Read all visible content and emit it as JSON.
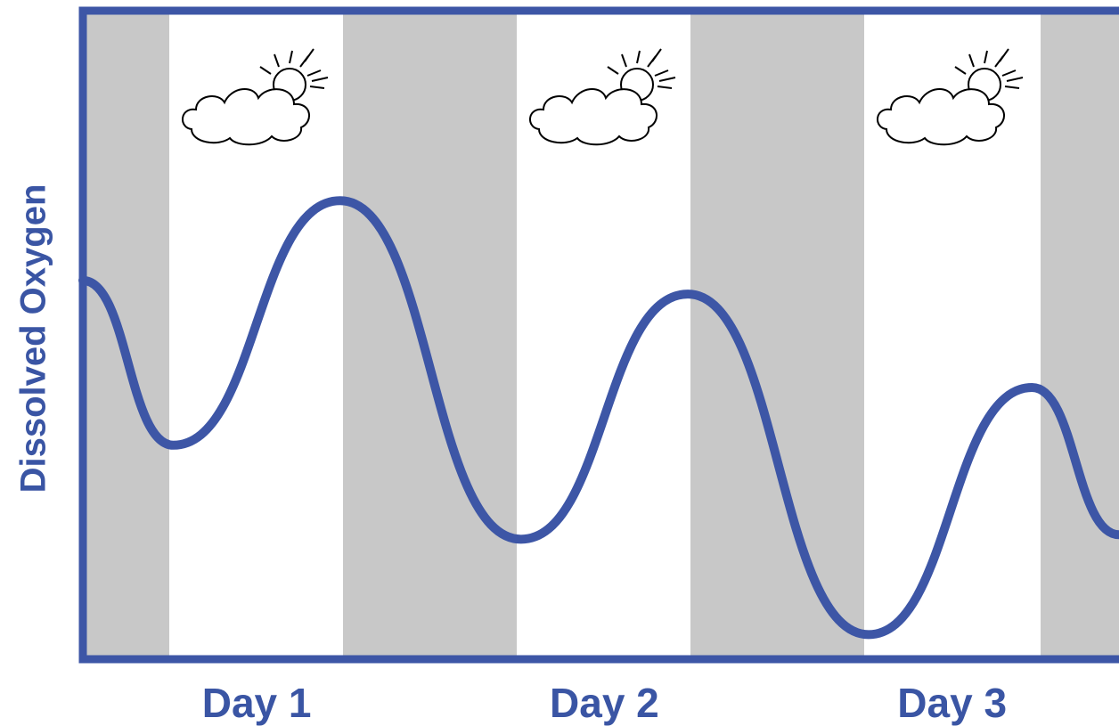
{
  "chart_data": {
    "type": "line",
    "y_label": "Dissolved Oxygen",
    "x": [
      0,
      0.26,
      0.74,
      1.26,
      1.74,
      2.26,
      2.73,
      2.98
    ],
    "values": [
      58.4,
      33,
      70.7,
      18.5,
      56.3,
      3.8,
      41.9,
      19.2
    ],
    "color": "#3d56a6",
    "xlim": [
      0,
      2.98
    ],
    "ylim": [
      0,
      100
    ],
    "xticks": [
      {
        "value": 0.5,
        "label": "Day 1"
      },
      {
        "value": 1.5,
        "label": "Day 2"
      },
      {
        "value": 2.5,
        "label": "Day 3"
      }
    ]
  }
}
